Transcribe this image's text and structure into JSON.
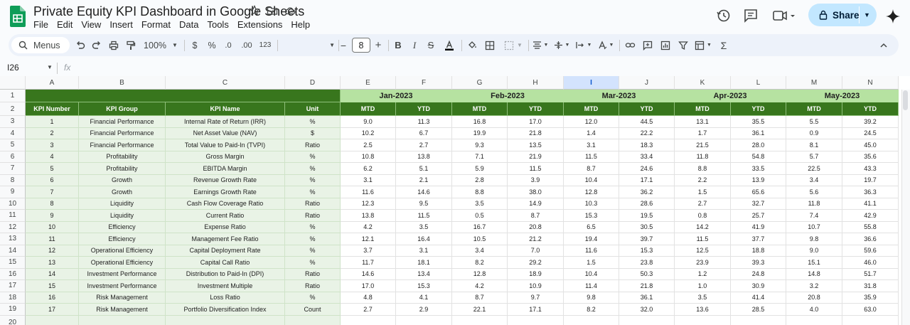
{
  "doc": {
    "title": "Private Equity KPI Dashboard in Google Sheets",
    "menus": [
      "File",
      "Edit",
      "View",
      "Insert",
      "Format",
      "Data",
      "Tools",
      "Extensions",
      "Help"
    ]
  },
  "toolbar": {
    "menus_label": "Menus",
    "zoom": "100%",
    "currency": "$",
    "percent": "%",
    "dec_decrease": ".0",
    "dec_increase": ".00",
    "number_format": "123",
    "font_size": "8",
    "minus": "−",
    "plus": "+",
    "sum": "Σ"
  },
  "share": {
    "label": "Share"
  },
  "formula_bar": {
    "cell_ref": "I26",
    "fx": "fx"
  },
  "grid": {
    "columns": [
      "A",
      "B",
      "C",
      "D",
      "E",
      "F",
      "G",
      "H",
      "I",
      "J",
      "K",
      "L",
      "M",
      "N"
    ],
    "selected_column": "I",
    "row_numbers": [
      "1",
      "2",
      "3",
      "4",
      "5",
      "6",
      "7",
      "8",
      "9",
      "10",
      "11",
      "12",
      "13",
      "14",
      "15",
      "16",
      "17",
      "18",
      "19",
      "20"
    ],
    "months": [
      "Jan-2023",
      "Feb-2023",
      "Mar-2023",
      "Apr-2023",
      "May-2023"
    ],
    "header": {
      "kpi_number": "KPI Number",
      "kpi_group": "KPI Group",
      "kpi_name": "KPI Name",
      "unit": "Unit",
      "mtd": "MTD",
      "ytd": "YTD"
    },
    "rows": [
      {
        "num": "1",
        "group": "Financial Performance",
        "name": "Internal Rate of Return (IRR)",
        "unit": "%",
        "values": [
          "9.0",
          "11.3",
          "16.8",
          "17.0",
          "12.0",
          "44.5",
          "13.1",
          "35.5",
          "5.5",
          "39.2"
        ]
      },
      {
        "num": "2",
        "group": "Financial Performance",
        "name": "Net Asset Value (NAV)",
        "unit": "$",
        "values": [
          "10.2",
          "6.7",
          "19.9",
          "21.8",
          "1.4",
          "22.2",
          "1.7",
          "36.1",
          "0.9",
          "24.5"
        ]
      },
      {
        "num": "3",
        "group": "Financial Performance",
        "name": "Total Value to Paid-In (TVPI)",
        "unit": "Ratio",
        "values": [
          "2.5",
          "2.7",
          "9.3",
          "13.5",
          "3.1",
          "18.3",
          "21.5",
          "28.0",
          "8.1",
          "45.0"
        ]
      },
      {
        "num": "4",
        "group": "Profitability",
        "name": "Gross Margin",
        "unit": "%",
        "values": [
          "10.8",
          "13.8",
          "7.1",
          "21.9",
          "11.5",
          "33.4",
          "11.8",
          "54.8",
          "5.7",
          "35.6"
        ]
      },
      {
        "num": "5",
        "group": "Profitability",
        "name": "EBITDA Margin",
        "unit": "%",
        "values": [
          "6.2",
          "5.1",
          "5.9",
          "11.5",
          "8.7",
          "24.6",
          "8.8",
          "33.5",
          "22.5",
          "43.3"
        ]
      },
      {
        "num": "6",
        "group": "Growth",
        "name": "Revenue Growth Rate",
        "unit": "%",
        "values": [
          "3.1",
          "2.1",
          "2.8",
          "3.9",
          "10.4",
          "17.1",
          "2.2",
          "13.9",
          "3.4",
          "19.7"
        ]
      },
      {
        "num": "7",
        "group": "Growth",
        "name": "Earnings Growth Rate",
        "unit": "%",
        "values": [
          "11.6",
          "14.6",
          "8.8",
          "38.0",
          "12.8",
          "36.2",
          "1.5",
          "65.6",
          "5.6",
          "36.3"
        ]
      },
      {
        "num": "8",
        "group": "Liquidity",
        "name": "Cash Flow Coverage Ratio",
        "unit": "Ratio",
        "values": [
          "12.3",
          "9.5",
          "3.5",
          "14.9",
          "10.3",
          "28.6",
          "2.7",
          "32.7",
          "11.8",
          "41.1"
        ]
      },
      {
        "num": "9",
        "group": "Liquidity",
        "name": "Current Ratio",
        "unit": "Ratio",
        "values": [
          "13.8",
          "11.5",
          "0.5",
          "8.7",
          "15.3",
          "19.5",
          "0.8",
          "25.7",
          "7.4",
          "42.9"
        ]
      },
      {
        "num": "10",
        "group": "Efficiency",
        "name": "Expense Ratio",
        "unit": "%",
        "values": [
          "4.2",
          "3.5",
          "16.7",
          "20.8",
          "6.5",
          "30.5",
          "14.2",
          "41.9",
          "10.7",
          "55.8"
        ]
      },
      {
        "num": "11",
        "group": "Efficiency",
        "name": "Management Fee Ratio",
        "unit": "%",
        "values": [
          "12.1",
          "16.4",
          "10.5",
          "21.2",
          "19.4",
          "39.7",
          "11.5",
          "37.7",
          "9.8",
          "36.6"
        ]
      },
      {
        "num": "12",
        "group": "Operational Efficiency",
        "name": "Capital Deployment Rate",
        "unit": "%",
        "values": [
          "3.7",
          "3.1",
          "3.4",
          "7.0",
          "11.6",
          "15.3",
          "12.5",
          "18.8",
          "9.0",
          "59.6"
        ]
      },
      {
        "num": "13",
        "group": "Operational Efficiency",
        "name": "Capital Call Ratio",
        "unit": "%",
        "values": [
          "11.7",
          "18.1",
          "8.2",
          "29.2",
          "1.5",
          "23.8",
          "23.9",
          "39.3",
          "15.1",
          "46.0"
        ]
      },
      {
        "num": "14",
        "group": "Investment Performance",
        "name": "Distribution to Paid-In (DPI)",
        "unit": "Ratio",
        "values": [
          "14.6",
          "13.4",
          "12.8",
          "18.9",
          "10.4",
          "50.3",
          "1.2",
          "24.8",
          "14.8",
          "51.7"
        ]
      },
      {
        "num": "15",
        "group": "Investment Performance",
        "name": "Investment Multiple",
        "unit": "Ratio",
        "values": [
          "17.0",
          "15.3",
          "4.2",
          "10.9",
          "11.4",
          "21.8",
          "1.0",
          "30.9",
          "3.2",
          "31.8"
        ]
      },
      {
        "num": "16",
        "group": "Risk Management",
        "name": "Loss Ratio",
        "unit": "%",
        "values": [
          "4.8",
          "4.1",
          "8.7",
          "9.7",
          "9.8",
          "36.1",
          "3.5",
          "41.4",
          "20.8",
          "35.9"
        ]
      },
      {
        "num": "17",
        "group": "Risk Management",
        "name": "Portfolio Diversification Index",
        "unit": "Count",
        "values": [
          "2.7",
          "2.9",
          "22.1",
          "17.1",
          "8.2",
          "32.0",
          "13.6",
          "28.5",
          "4.0",
          "63.0"
        ]
      }
    ]
  }
}
